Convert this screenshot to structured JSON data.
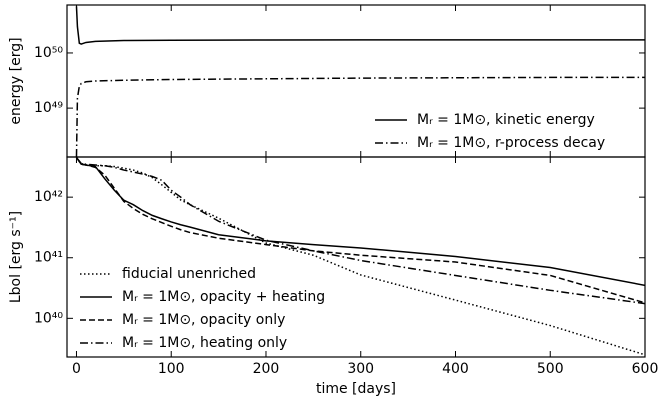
{
  "chart_data": [
    {
      "type": "line",
      "ylabel": "energy [erg]",
      "log_y": true,
      "legend": "lower right",
      "xtick_labels": false,
      "xlim": [
        -10,
        600
      ],
      "xticks": [
        0,
        100,
        200,
        300,
        400,
        500,
        600
      ],
      "ylim": [
        1.3e+48,
        7.4e+50
      ],
      "yticks": [
        {
          "value": 1e+49,
          "label": "10⁴⁹"
        },
        {
          "value": 1e+50,
          "label": "10⁵⁰"
        }
      ],
      "x": [
        0,
        1,
        3,
        5,
        10,
        20,
        50,
        100,
        200,
        300,
        400,
        500,
        600
      ],
      "series": [
        {
          "name": "Mᵣ = 1M⊙, kinetic energy",
          "color": "#000000",
          "dash": "solid",
          "values": [
            7e+50,
            3e+50,
            1.5e+50,
            1.45e+50,
            1.55e+50,
            1.62e+50,
            1.68e+50,
            1.7e+50,
            1.72e+50,
            1.73e+50,
            1.73e+50,
            1.73e+50,
            1.73e+50
          ]
        },
        {
          "name": "Mᵣ = 1M⊙, r-process decay",
          "color": "#000000",
          "dash": "dashdot",
          "values": [
            1.3e+48,
            1.5e+49,
            2.5e+49,
            2.8e+49,
            3e+49,
            3.1e+49,
            3.2e+49,
            3.3e+49,
            3.4e+49,
            3.5e+49,
            3.55e+49,
            3.6e+49,
            3.6e+49
          ]
        }
      ]
    },
    {
      "type": "line",
      "ylabel": "Lbol [erg s⁻¹]",
      "xlabel": "time [days]",
      "log_y": true,
      "legend": "lower left",
      "xtick_labels": true,
      "xlim": [
        -10,
        600
      ],
      "xticks": [
        0,
        100,
        200,
        300,
        400,
        500,
        600
      ],
      "ylim": [
        2.3e+39,
        4.6e+42
      ],
      "yticks": [
        {
          "value": 1e+40,
          "label": "10⁴⁰"
        },
        {
          "value": 1e+41,
          "label": "10⁴¹"
        },
        {
          "value": 1e+42,
          "label": "10⁴²"
        }
      ],
      "x": [
        0,
        5,
        10,
        20,
        30,
        40,
        50,
        60,
        70,
        80,
        90,
        100,
        110,
        120,
        150,
        200,
        250,
        300,
        400,
        500,
        600
      ],
      "series": [
        {
          "name": "fiducial unenriched",
          "color": "#000000",
          "dash": "dotted",
          "values": [
            4.5e+42,
            3.6e+42,
            3.4e+42,
            3.3e+42,
            3.3e+42,
            3.2e+42,
            3e+42,
            2.8e+42,
            2.5e+42,
            2.1e+42,
            1.6e+42,
            1.2e+42,
            9e+41,
            7.5e+41,
            4.5e+41,
            1.75e+41,
            1.1e+41,
            5.2e+40,
            2e+40,
            7.6e+39,
            2.5e+39
          ]
        },
        {
          "name": "Mᵣ = 1M⊙, opacity + heating",
          "color": "#000000",
          "dash": "solid",
          "values": [
            4.5e+42,
            3.5e+42,
            3.4e+42,
            3.2e+42,
            2e+42,
            1.3e+42,
            8.9e+41,
            7.5e+41,
            6e+41,
            5e+41,
            4.4e+41,
            3.9e+41,
            3.5e+41,
            3.2e+41,
            2.4e+41,
            1.9e+41,
            1.65e+41,
            1.45e+41,
            1.05e+41,
            6.9e+40,
            3.5e+40
          ]
        },
        {
          "name": "Mᵣ = 1M⊙, opacity only",
          "color": "#000000",
          "dash": "dashed",
          "values": [
            4.5e+42,
            3.5e+42,
            3.4e+42,
            3.1e+42,
            2.3e+42,
            1.4e+42,
            8.5e+41,
            6.5e+41,
            5.2e+41,
            4.4e+41,
            3.8e+41,
            3.3e+41,
            2.9e+41,
            2.6e+41,
            2.1e+41,
            1.65e+41,
            1.3e+41,
            1.1e+41,
            8.5e+40,
            5.1e+40,
            1.8e+40
          ]
        },
        {
          "name": "Mᵣ = 1M⊙, heating only",
          "color": "#000000",
          "dash": "dashdot",
          "values": [
            4.5e+42,
            3.6e+42,
            3.5e+42,
            3.4e+42,
            3.3e+42,
            3.1e+42,
            2.8e+42,
            2.6e+42,
            2.4e+42,
            2.2e+42,
            1.9e+42,
            1.3e+42,
            1e+42,
            7.5e+41,
            4e+41,
            1.95e+41,
            1.3e+41,
            9e+40,
            5.1e+40,
            2.9e+40,
            1.75e+40
          ]
        }
      ]
    }
  ]
}
